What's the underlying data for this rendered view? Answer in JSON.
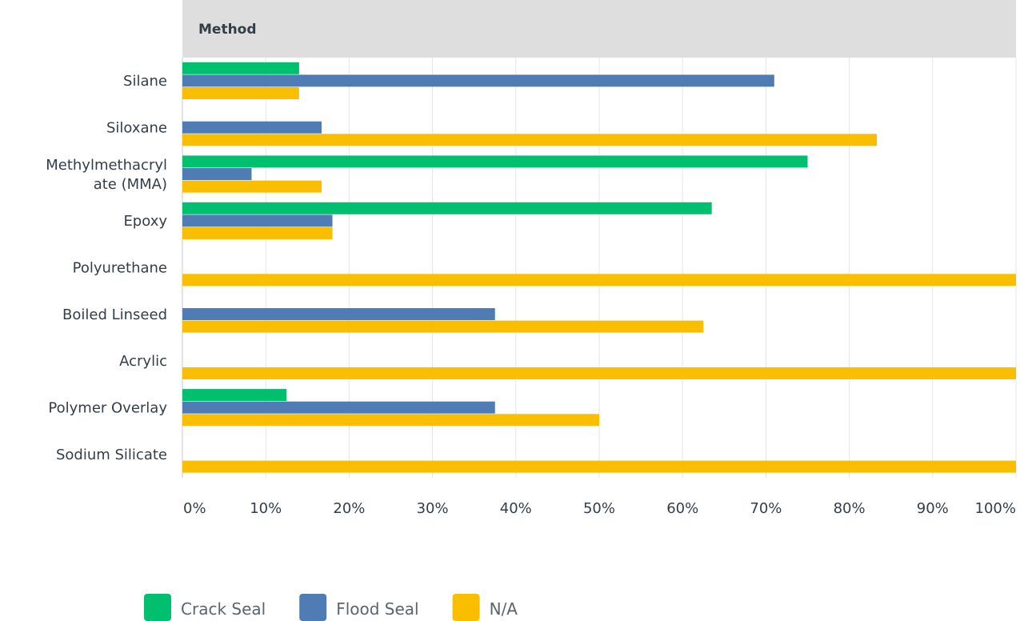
{
  "chart_data": {
    "type": "bar",
    "orientation": "horizontal",
    "header": "Method",
    "categories": [
      [
        "Silane"
      ],
      [
        "Siloxane"
      ],
      [
        "Methylmethacryl",
        "ate (MMA)"
      ],
      [
        "Epoxy"
      ],
      [
        "Polyurethane"
      ],
      [
        "Boiled Linseed"
      ],
      [
        "Acrylic"
      ],
      [
        "Polymer Overlay"
      ],
      [
        "Sodium Silicate"
      ]
    ],
    "series": [
      {
        "name": "Crack Seal",
        "color": "#00bf6f",
        "values": [
          14,
          0,
          75,
          63.5,
          0,
          0,
          0,
          12.5,
          0
        ]
      },
      {
        "name": "Flood Seal",
        "color": "#507cb6",
        "values": [
          71,
          16.7,
          8.3,
          18,
          0,
          37.5,
          0,
          37.5,
          0
        ]
      },
      {
        "name": "N/A",
        "color": "#f9be00",
        "values": [
          14,
          83.3,
          16.7,
          18,
          100,
          62.5,
          100,
          50,
          100
        ]
      }
    ],
    "xlim": [
      0,
      100
    ],
    "x_ticks": [
      "0%",
      "10%",
      "20%",
      "30%",
      "40%",
      "50%",
      "60%",
      "70%",
      "80%",
      "90%",
      "100%"
    ],
    "grid": true,
    "legend": "bottom-left"
  }
}
